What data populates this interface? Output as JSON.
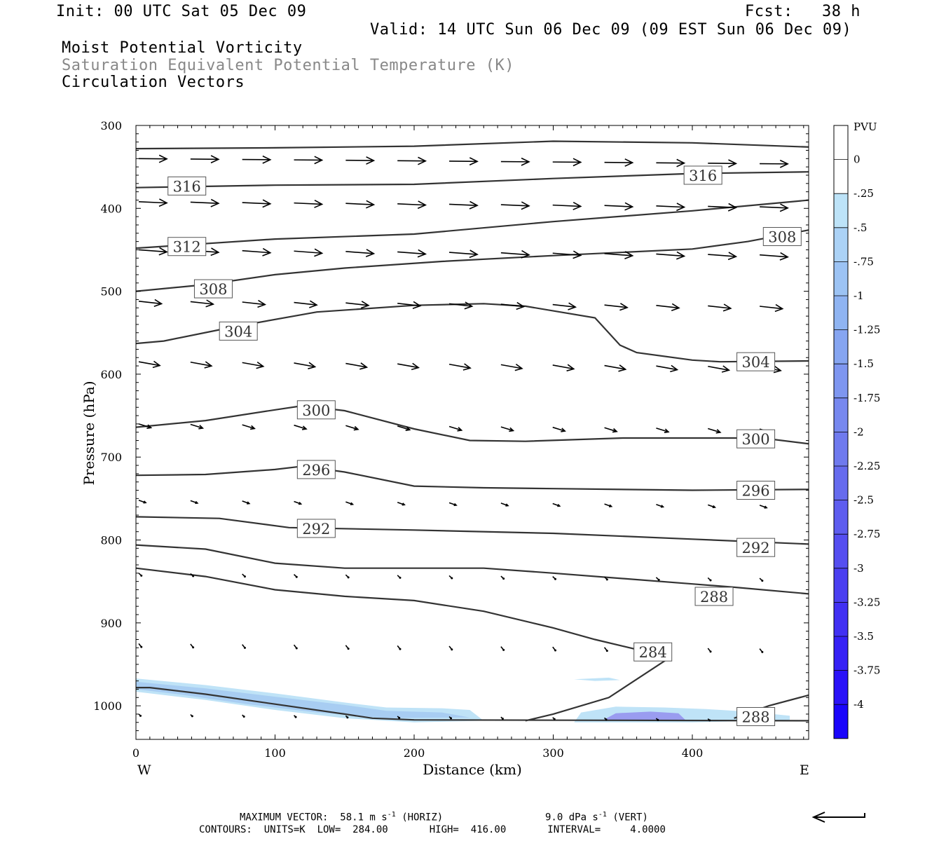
{
  "header": {
    "init": "Init: 00 UTC Sat 05 Dec 09",
    "fcst": "Fcst:   38 h",
    "valid": "Valid: 14 UTC Sun 06 Dec 09 (09 EST Sun 06 Dec 09)",
    "line1": "Moist Potential Vorticity",
    "line2": "Saturation Equivalent Potential Temperature (K)",
    "line3": "Circulation Vectors"
  },
  "footer": {
    "max_vector": "MAXIMUM VECTOR:  58.1 m s",
    "max_vector_exp": "-1",
    "horiz": "(HORIZ)",
    "vert_val": "9.0 dPa s",
    "vert_exp": "-1",
    "vert": "(VERT)",
    "contours": "CONTOURS:  UNITS=K  LOW=  284.00       HIGH=  416.00       INTERVAL=     4.0000"
  },
  "colors": {
    "contour": "#333333",
    "vector": "#000000",
    "mpv_light": "#bfe3f7",
    "mpv_mid": "#a8cdf2",
    "mpv_purple": "#9a9cf0"
  },
  "colorbar": {
    "unit": "PVU",
    "labels": [
      "0",
      "-.25",
      "-.5",
      "-.75",
      "-1",
      "-1.25",
      "-1.5",
      "-1.75",
      "-2",
      "-2.25",
      "-2.5",
      "-2.75",
      "-3",
      "-3.25",
      "-3.5",
      "-3.75",
      "-4"
    ],
    "colors": [
      "#ffffff",
      "#ffffff",
      "#bde3f8",
      "#abd2f6",
      "#9cc3f4",
      "#8fb4f2",
      "#86a5f1",
      "#7e96f0",
      "#7788ef",
      "#6f7aee",
      "#666bee",
      "#5e5def",
      "#554ef0",
      "#4b3ff1",
      "#4130f3",
      "#3621f5",
      "#2a12f8",
      "#1a05fb"
    ]
  },
  "chart_data": {
    "type": "cross-section",
    "xlabel": "Distance (km)",
    "ylabel": "Pressure (hPa)",
    "xlim": [
      0,
      484
    ],
    "ylim": [
      1040,
      300
    ],
    "x_ticks": [
      0,
      100,
      200,
      300,
      400
    ],
    "y_ticks": [
      300,
      400,
      500,
      600,
      700,
      800,
      900,
      1000
    ],
    "x_end_labels": {
      "left": "W",
      "right": "E"
    },
    "contours": [
      {
        "points": [
          [
            0,
            328
          ],
          [
            100,
            327
          ],
          [
            200,
            325
          ],
          [
            300,
            319
          ],
          [
            400,
            321
          ],
          [
            484,
            326
          ]
        ]
      },
      {
        "points": [
          [
            0,
            375
          ],
          [
            100,
            372
          ],
          [
            200,
            371
          ],
          [
            300,
            364
          ],
          [
            400,
            358
          ],
          [
            484,
            356
          ]
        ]
      },
      {
        "points": [
          [
            0,
            448
          ],
          [
            100,
            437
          ],
          [
            200,
            431
          ],
          [
            300,
            416
          ],
          [
            400,
            403
          ],
          [
            484,
            390
          ]
        ]
      },
      {
        "points": [
          [
            0,
            500
          ],
          [
            50,
            492
          ],
          [
            100,
            480
          ],
          [
            150,
            472
          ],
          [
            220,
            464
          ],
          [
            300,
            457
          ],
          [
            400,
            449
          ],
          [
            440,
            440
          ],
          [
            484,
            426
          ]
        ]
      },
      {
        "points": [
          [
            0,
            563
          ],
          [
            20,
            560
          ],
          [
            70,
            543
          ],
          [
            130,
            525
          ],
          [
            200,
            517
          ],
          [
            250,
            515
          ],
          [
            280,
            518
          ],
          [
            330,
            532
          ],
          [
            348,
            565
          ],
          [
            360,
            574
          ],
          [
            400,
            583
          ],
          [
            420,
            585
          ],
          [
            484,
            584
          ]
        ]
      },
      {
        "points": [
          [
            0,
            664
          ],
          [
            50,
            656
          ],
          [
            100,
            643
          ],
          [
            120,
            638
          ],
          [
            150,
            644
          ],
          [
            200,
            666
          ],
          [
            240,
            680
          ],
          [
            280,
            681
          ],
          [
            350,
            677
          ],
          [
            400,
            677
          ],
          [
            450,
            677
          ],
          [
            484,
            684
          ]
        ]
      },
      {
        "points": [
          [
            0,
            722
          ],
          [
            50,
            721
          ],
          [
            100,
            715
          ],
          [
            120,
            711
          ],
          [
            150,
            718
          ],
          [
            200,
            735
          ],
          [
            250,
            737
          ],
          [
            300,
            738
          ],
          [
            400,
            740
          ],
          [
            484,
            739
          ]
        ]
      },
      {
        "points": [
          [
            0,
            772
          ],
          [
            60,
            774
          ],
          [
            110,
            785
          ],
          [
            200,
            788
          ],
          [
            300,
            792
          ],
          [
            400,
            799
          ],
          [
            484,
            805
          ]
        ]
      },
      {
        "points": [
          [
            0,
            806
          ],
          [
            50,
            811
          ],
          [
            100,
            828
          ],
          [
            150,
            834
          ],
          [
            250,
            834
          ],
          [
            300,
            840
          ],
          [
            400,
            853
          ],
          [
            430,
            857
          ],
          [
            484,
            865
          ]
        ]
      },
      {
        "points": [
          [
            0,
            834
          ],
          [
            50,
            844
          ],
          [
            100,
            860
          ],
          [
            150,
            868
          ],
          [
            200,
            873
          ],
          [
            250,
            886
          ],
          [
            300,
            906
          ],
          [
            330,
            920
          ],
          [
            370,
            936
          ],
          [
            380,
            946
          ],
          [
            340,
            990
          ],
          [
            300,
            1010
          ],
          [
            280,
            1018
          ]
        ]
      },
      {
        "points": [
          [
            0,
            978
          ],
          [
            10,
            978
          ],
          [
            50,
            986
          ],
          [
            100,
            998
          ],
          [
            150,
            1010
          ],
          [
            170,
            1015
          ],
          [
            200,
            1017
          ],
          [
            484,
            1018
          ]
        ]
      },
      {
        "points": [
          [
            430,
            1015
          ],
          [
            455,
            1000
          ],
          [
            484,
            987
          ]
        ]
      }
    ],
    "contour_labels": [
      {
        "text": "316",
        "x": 18,
        "p": 373
      },
      {
        "text": "316",
        "x": 389,
        "p": 360
      },
      {
        "text": "312",
        "x": 18,
        "p": 446
      },
      {
        "text": "308",
        "x": 37,
        "p": 497
      },
      {
        "text": "308",
        "x": 446,
        "p": 434
      },
      {
        "text": "304",
        "x": 55,
        "p": 548
      },
      {
        "text": "304",
        "x": 427,
        "p": 585
      },
      {
        "text": "300",
        "x": 111,
        "p": 643
      },
      {
        "text": "300",
        "x": 427,
        "p": 678
      },
      {
        "text": "296",
        "x": 111,
        "p": 715
      },
      {
        "text": "296",
        "x": 427,
        "p": 740
      },
      {
        "text": "292",
        "x": 111,
        "p": 786
      },
      {
        "text": "292",
        "x": 427,
        "p": 809
      },
      {
        "text": "288",
        "x": 397,
        "p": 868
      },
      {
        "text": "284",
        "x": 353,
        "p": 935
      },
      {
        "text": "288",
        "x": 427,
        "p": 1013
      }
    ],
    "mpv_regions": [
      {
        "level": -0.25,
        "points": [
          [
            0,
            967
          ],
          [
            50,
            975
          ],
          [
            100,
            985
          ],
          [
            150,
            996
          ],
          [
            180,
            1002
          ],
          [
            220,
            1003
          ],
          [
            240,
            1005
          ],
          [
            250,
            1018
          ],
          [
            200,
            1020
          ],
          [
            150,
            1015
          ],
          [
            100,
            1005
          ],
          [
            50,
            993
          ],
          [
            0,
            983
          ]
        ]
      },
      {
        "level": -0.5,
        "points": [
          [
            0,
            971
          ],
          [
            50,
            979
          ],
          [
            100,
            989
          ],
          [
            150,
            999
          ],
          [
            180,
            1006
          ],
          [
            220,
            1008
          ],
          [
            240,
            1014
          ],
          [
            180,
            1015
          ],
          [
            130,
            1008
          ],
          [
            80,
            998
          ],
          [
            30,
            986
          ],
          [
            0,
            980
          ]
        ]
      },
      {
        "level": -0.25,
        "points": [
          [
            315,
            1020
          ],
          [
            320,
            1008
          ],
          [
            345,
            1001
          ],
          [
            380,
            1002
          ],
          [
            410,
            1004
          ],
          [
            440,
            1007
          ],
          [
            470,
            1012
          ],
          [
            470,
            1017
          ],
          [
            400,
            1020
          ]
        ]
      },
      {
        "level": -0.75,
        "points": [
          [
            335,
            1018
          ],
          [
            345,
            1009
          ],
          [
            370,
            1007
          ],
          [
            390,
            1009
          ],
          [
            395,
            1017
          ]
        ]
      },
      {
        "level": -0.25,
        "points": [
          [
            315,
            968
          ],
          [
            340,
            966
          ],
          [
            348,
            969
          ],
          [
            330,
            970
          ]
        ]
      }
    ],
    "vectors": [
      {
        "row_p": 340,
        "x0": 0,
        "dx": 37.2,
        "n": 13,
        "u": 32,
        "v": 0.3,
        "shift": [
          0,
          1,
          2,
          3,
          4,
          5,
          6,
          7,
          8,
          9,
          10,
          11,
          12
        ]
      },
      {
        "row_p": 392,
        "x0": 0,
        "dx": 37.2,
        "n": 13,
        "u": 32,
        "v": 1.5
      },
      {
        "row_p": 450,
        "x0": 0,
        "dx": 37.2,
        "n": 13,
        "u": 32,
        "v": 2.5
      },
      {
        "row_p": 512,
        "x0": 0,
        "dx": 37.2,
        "n": 13,
        "u": 26,
        "v": 3.0
      },
      {
        "row_p": 585,
        "x0": 0,
        "dx": 37.2,
        "n": 13,
        "u": 24,
        "v": 4.5
      },
      {
        "row_p": 660,
        "x0": 0,
        "dx": 37.2,
        "n": 13,
        "u": 14,
        "v": 4.5
      },
      {
        "row_p": 752,
        "x0": 0,
        "dx": 37.2,
        "n": 13,
        "u": 8,
        "v": 3.0
      },
      {
        "row_p": 840,
        "x0": 0,
        "dx": 37.2,
        "n": 13,
        "u": 3,
        "v": 3.0
      },
      {
        "row_p": 925,
        "x0": 0,
        "dx": 37.2,
        "n": 13,
        "u": 3,
        "v": 4.0
      },
      {
        "row_p": 1010,
        "x0": 0,
        "dx": 37.2,
        "n": 13,
        "u": 2,
        "v": 2.0
      }
    ]
  }
}
